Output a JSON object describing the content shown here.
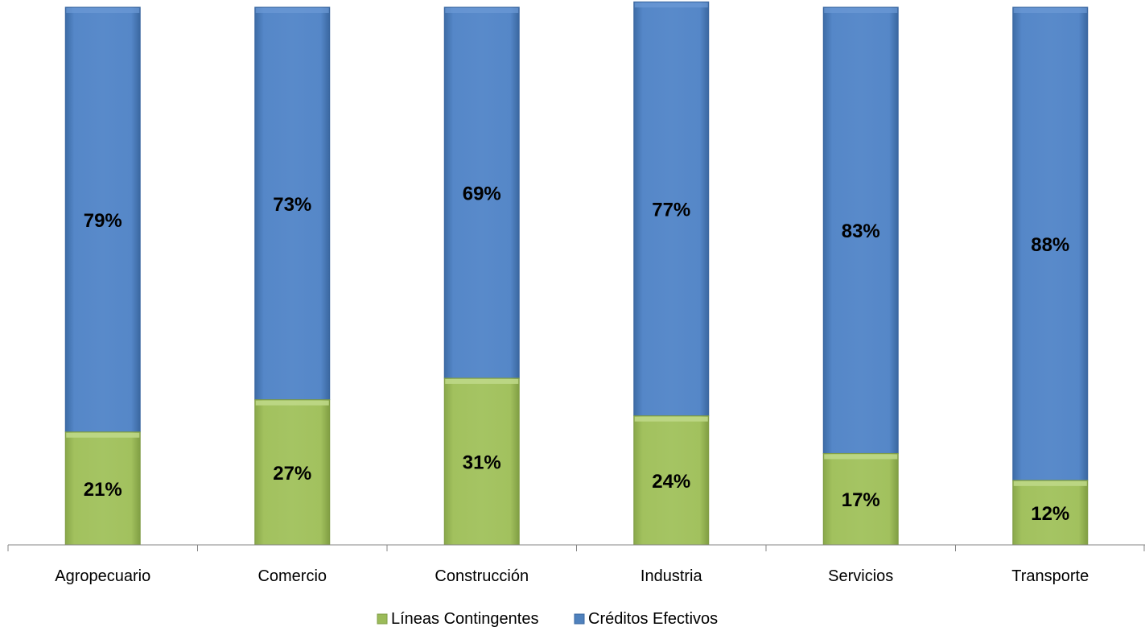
{
  "chart_data": {
    "type": "bar",
    "stacked": true,
    "percent": true,
    "categories": [
      "Agropecuario",
      "Comercio",
      "Construcción",
      "Industria",
      "Servicios",
      "Transporte"
    ],
    "series": [
      {
        "name": "Líneas Contingentes",
        "values": [
          21,
          27,
          31,
          24,
          17,
          12
        ],
        "labels": [
          "21%",
          "27%",
          "31%",
          "24%",
          "17%",
          "12%"
        ],
        "color": "#9BBB59"
      },
      {
        "name": "Créditos Efectivos",
        "values": [
          79,
          73,
          69,
          77,
          83,
          88
        ],
        "labels": [
          "79%",
          "73%",
          "69%",
          "77%",
          "83%",
          "88%"
        ],
        "color": "#4F81BD"
      }
    ],
    "ylim": [
      0,
      100
    ],
    "grid": false,
    "legend_position": "bottom"
  }
}
